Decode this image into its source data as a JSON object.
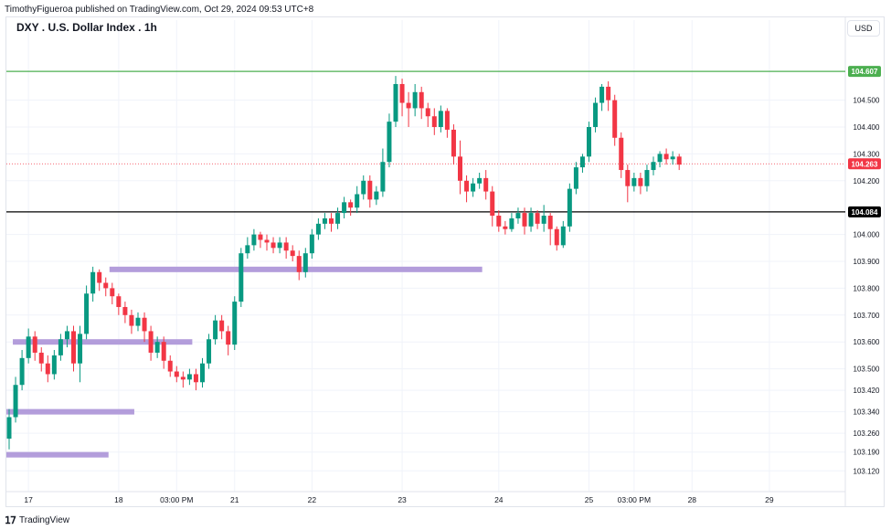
{
  "header": {
    "published": "TimothyFigueroa published on TradingView.com, Oct 29, 2024 09:53 UTC+8"
  },
  "chart_header": {
    "title": "DXY . U.S. Dollar Index . 1h",
    "currency": "USD"
  },
  "footer": {
    "brand": "TradingView"
  },
  "chart_data": {
    "type": "candlestick",
    "title": "DXY . U.S. Dollar Index . 1h",
    "ylim": [
      103.07,
      104.73
    ],
    "y_ticks": [
      104.5,
      104.4,
      104.3,
      104.2,
      104.0,
      103.9,
      103.8,
      103.7,
      103.6,
      103.5,
      103.42,
      103.34,
      103.26,
      103.19,
      103.12
    ],
    "y_tick_labels": [
      "104.500",
      "104.400",
      "104.300",
      "104.200",
      "104.000",
      "103.900",
      "103.800",
      "103.700",
      "103.600",
      "103.500",
      "103.420",
      "103.340",
      "103.260",
      "103.190",
      "103.120"
    ],
    "hidden_tick": "104.100",
    "x_ticks": [
      {
        "label": "17",
        "bar": 3
      },
      {
        "label": "18",
        "bar": 17
      },
      {
        "label": "03:00 PM",
        "bar": 26
      },
      {
        "label": "21",
        "bar": 35
      },
      {
        "label": "22",
        "bar": 47
      },
      {
        "label": "23",
        "bar": 61
      },
      {
        "label": "24",
        "bar": 76
      },
      {
        "label": "25",
        "bar": 90
      },
      {
        "label": "03:00 PM",
        "bar": 97
      },
      {
        "label": "28",
        "bar": 106
      },
      {
        "label": "29",
        "bar": 118
      }
    ],
    "candles": [
      [
        103.24,
        103.32,
        103.2,
        103.35
      ],
      [
        103.32,
        103.44,
        103.3,
        103.47
      ],
      [
        103.44,
        103.54,
        103.42,
        103.57
      ],
      [
        103.54,
        103.62,
        103.52,
        103.65
      ],
      [
        103.62,
        103.56,
        103.53,
        103.64
      ],
      [
        103.56,
        103.52,
        103.49,
        103.58
      ],
      [
        103.52,
        103.48,
        103.45,
        103.55
      ],
      [
        103.48,
        103.55,
        103.46,
        103.57
      ],
      [
        103.55,
        103.61,
        103.53,
        103.63
      ],
      [
        103.61,
        103.64,
        103.58,
        103.66
      ],
      [
        103.64,
        103.52,
        103.49,
        103.66
      ],
      [
        103.52,
        103.63,
        103.45,
        103.66
      ],
      [
        103.63,
        103.78,
        103.61,
        103.81
      ],
      [
        103.78,
        103.86,
        103.75,
        103.88
      ],
      [
        103.86,
        103.82,
        103.79,
        103.87
      ],
      [
        103.82,
        103.8,
        103.77,
        103.84
      ],
      [
        103.8,
        103.77,
        103.74,
        103.82
      ],
      [
        103.77,
        103.73,
        103.7,
        103.78
      ],
      [
        103.73,
        103.7,
        103.67,
        103.75
      ],
      [
        103.7,
        103.66,
        103.63,
        103.72
      ],
      [
        103.66,
        103.69,
        103.64,
        103.71
      ],
      [
        103.69,
        103.64,
        103.6,
        103.71
      ],
      [
        103.64,
        103.56,
        103.53,
        103.66
      ],
      [
        103.56,
        103.6,
        103.54,
        103.62
      ],
      [
        103.6,
        103.53,
        103.5,
        103.62
      ],
      [
        103.53,
        103.49,
        103.47,
        103.55
      ],
      [
        103.49,
        103.47,
        103.45,
        103.51
      ],
      [
        103.47,
        103.46,
        103.43,
        103.49
      ],
      [
        103.46,
        103.48,
        103.44,
        103.5
      ],
      [
        103.48,
        103.45,
        103.42,
        103.5
      ],
      [
        103.45,
        103.52,
        103.43,
        103.54
      ],
      [
        103.52,
        103.61,
        103.5,
        103.63
      ],
      [
        103.61,
        103.68,
        103.59,
        103.7
      ],
      [
        103.68,
        103.64,
        103.61,
        103.7
      ],
      [
        103.64,
        103.59,
        103.55,
        103.66
      ],
      [
        103.59,
        103.75,
        103.57,
        103.77
      ],
      [
        103.75,
        103.93,
        103.73,
        103.95
      ],
      [
        103.93,
        103.96,
        103.91,
        103.99
      ],
      [
        103.96,
        104.0,
        103.94,
        104.02
      ],
      [
        104.0,
        103.98,
        103.95,
        104.01
      ],
      [
        103.98,
        103.97,
        103.94,
        104.0
      ],
      [
        103.97,
        103.95,
        103.93,
        103.99
      ],
      [
        103.95,
        103.97,
        103.93,
        103.99
      ],
      [
        103.97,
        103.94,
        103.91,
        103.99
      ],
      [
        103.94,
        103.92,
        103.9,
        103.96
      ],
      [
        103.92,
        103.86,
        103.83,
        103.94
      ],
      [
        103.86,
        103.93,
        103.84,
        103.95
      ],
      [
        103.93,
        104.0,
        103.91,
        104.02
      ],
      [
        104.0,
        104.04,
        103.98,
        104.06
      ],
      [
        104.04,
        104.06,
        104.02,
        104.08
      ],
      [
        104.06,
        104.04,
        104.01,
        104.08
      ],
      [
        104.04,
        104.08,
        104.02,
        104.1
      ],
      [
        104.08,
        104.12,
        104.06,
        104.14
      ],
      [
        104.12,
        104.1,
        104.07,
        104.13
      ],
      [
        104.1,
        104.15,
        104.08,
        104.18
      ],
      [
        104.15,
        104.2,
        104.13,
        104.22
      ],
      [
        104.2,
        104.13,
        104.1,
        104.22
      ],
      [
        104.13,
        104.16,
        104.11,
        104.18
      ],
      [
        104.16,
        104.27,
        104.14,
        104.32
      ],
      [
        104.27,
        104.42,
        104.25,
        104.45
      ],
      [
        104.42,
        104.56,
        104.4,
        104.59
      ],
      [
        104.56,
        104.49,
        104.44,
        104.58
      ],
      [
        104.49,
        104.47,
        104.4,
        104.53
      ],
      [
        104.47,
        104.53,
        104.44,
        104.56
      ],
      [
        104.53,
        104.47,
        104.43,
        104.55
      ],
      [
        104.47,
        104.44,
        104.4,
        104.49
      ],
      [
        104.44,
        104.4,
        104.37,
        104.47
      ],
      [
        104.4,
        104.46,
        104.38,
        104.48
      ],
      [
        104.46,
        104.39,
        104.36,
        104.47
      ],
      [
        104.39,
        104.29,
        104.26,
        104.41
      ],
      [
        104.29,
        104.2,
        104.15,
        104.35
      ],
      [
        104.2,
        104.16,
        104.12,
        104.22
      ],
      [
        104.16,
        104.19,
        104.14,
        104.21
      ],
      [
        104.19,
        104.21,
        104.17,
        104.23
      ],
      [
        104.21,
        104.16,
        104.13,
        104.24
      ],
      [
        104.16,
        104.07,
        104.03,
        104.18
      ],
      [
        104.07,
        104.03,
        104.01,
        104.09
      ],
      [
        104.03,
        104.02,
        104.0,
        104.05
      ],
      [
        104.02,
        104.06,
        104.01,
        104.08
      ],
      [
        104.06,
        104.08,
        104.04,
        104.1
      ],
      [
        104.08,
        104.03,
        104.0,
        104.1
      ],
      [
        104.03,
        104.08,
        104.01,
        104.1
      ],
      [
        104.08,
        104.04,
        104.02,
        104.09
      ],
      [
        104.04,
        104.07,
        104.01,
        104.11
      ],
      [
        104.07,
        104.02,
        103.96,
        104.08
      ],
      [
        104.02,
        103.96,
        103.94,
        104.03
      ],
      [
        103.96,
        104.03,
        103.95,
        104.05
      ],
      [
        104.03,
        104.17,
        104.01,
        104.19
      ],
      [
        104.17,
        104.25,
        104.15,
        104.27
      ],
      [
        104.25,
        104.29,
        104.23,
        104.3
      ],
      [
        104.29,
        104.4,
        104.27,
        104.42
      ],
      [
        104.4,
        104.49,
        104.38,
        104.51
      ],
      [
        104.49,
        104.55,
        104.46,
        104.56
      ],
      [
        104.55,
        104.5,
        104.46,
        104.57
      ],
      [
        104.5,
        104.36,
        104.33,
        104.52
      ],
      [
        104.36,
        104.24,
        104.21,
        104.38
      ],
      [
        104.24,
        104.18,
        104.12,
        104.26
      ],
      [
        104.18,
        104.21,
        104.16,
        104.23
      ],
      [
        104.21,
        104.18,
        104.15,
        104.23
      ],
      [
        104.18,
        104.24,
        104.16,
        104.26
      ],
      [
        104.24,
        104.27,
        104.22,
        104.29
      ],
      [
        104.27,
        104.3,
        104.25,
        104.31
      ],
      [
        104.3,
        104.28,
        104.26,
        104.32
      ],
      [
        104.28,
        104.29,
        104.26,
        104.31
      ],
      [
        104.29,
        104.26,
        104.24,
        104.3
      ]
    ],
    "levels": [
      {
        "price": 104.607,
        "label": "104.607",
        "color": "#4caf50",
        "style": "solid"
      },
      {
        "price": 104.263,
        "label": "104.263",
        "color": "#f23645",
        "style": "dotted"
      },
      {
        "price": 104.084,
        "label": "104.084",
        "color": "#000000",
        "style": "solid"
      }
    ],
    "zones": [
      {
        "price": 103.87,
        "from_bar": 16,
        "to_bar": 73
      },
      {
        "price": 103.6,
        "from_bar": 1,
        "to_bar": 28
      },
      {
        "price": 103.34,
        "from_bar": 0,
        "to_bar": 19
      },
      {
        "price": 103.18,
        "from_bar": 0,
        "to_bar": 15
      }
    ],
    "colors": {
      "up": "#089981",
      "down": "#f23645",
      "zone": "#b39ddb",
      "grid": "#f0f3fa",
      "axis_text": "#131722"
    }
  }
}
